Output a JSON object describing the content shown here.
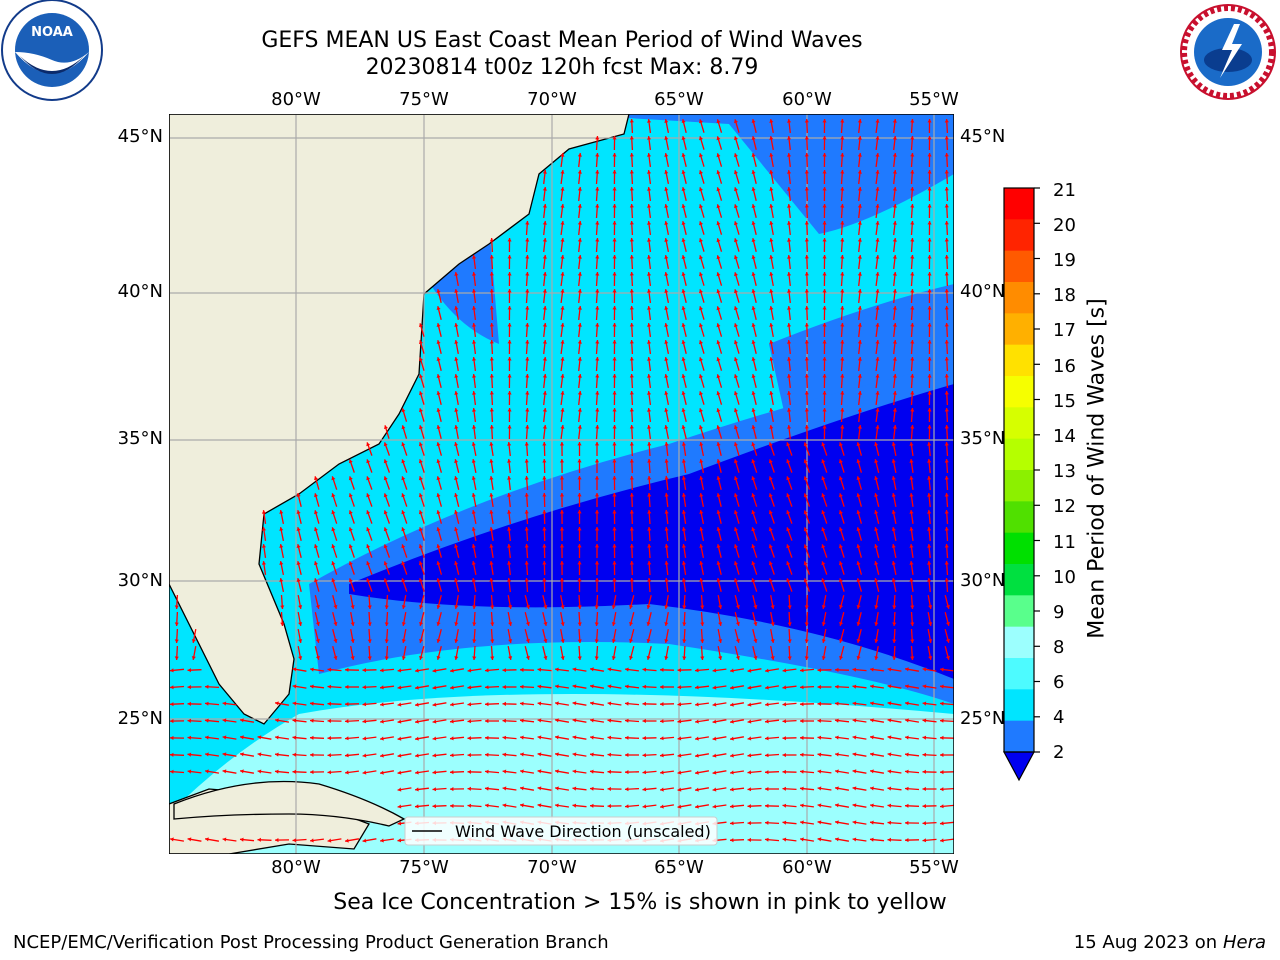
{
  "header": {
    "title_line1": "GEFS MEAN US East Coast Mean Period of Wind Waves",
    "title_line2": "20230814 t00z 120h fcst   Max: 8.79"
  },
  "logos": {
    "left": "NOAA",
    "right_text": "NATIONAL WEATHER SERVICE"
  },
  "map": {
    "lon_labels": [
      "80°W",
      "75°W",
      "70°W",
      "65°W",
      "60°W",
      "55°W"
    ],
    "lat_labels": [
      "45°N",
      "40°N",
      "35°N",
      "30°N",
      "25°N"
    ],
    "legend_label": "Wind Wave Direction (unscaled)",
    "colors": {
      "land": "#efeedc",
      "period_2_4": "#1f7aff",
      "period_4_6": "#00e5ff",
      "period_6_8": "#4dfbff",
      "period_8_9": "#9cfffe",
      "below_2": "#0000f0",
      "arrow": "#ff0000"
    }
  },
  "colorbar": {
    "title": "Mean Period of Wind Waves [s]",
    "ticks": [
      "21",
      "20",
      "19",
      "18",
      "17",
      "16",
      "15",
      "14",
      "13",
      "12",
      "11",
      "10",
      "9",
      "8",
      "6",
      "4",
      "2"
    ],
    "colors_top_to_bottom": [
      "#ff0000",
      "#ff2400",
      "#ff5a00",
      "#ff8c00",
      "#ffb000",
      "#ffe100",
      "#f6ff00",
      "#d6ff00",
      "#b5ff00",
      "#8cf000",
      "#50e000",
      "#00e000",
      "#00e040",
      "#59ff8c",
      "#9cfffe",
      "#4dfbff",
      "#00e5ff",
      "#1f7aff"
    ],
    "extend_color": "#0000f0"
  },
  "footer": {
    "sea_ice_note": "Sea Ice Concentration > 15% is shown in pink to yellow",
    "producer": "NCEP/EMC/Verification Post Processing Product Generation Branch",
    "date": "15 Aug 2023 on",
    "machine": "Hera"
  }
}
